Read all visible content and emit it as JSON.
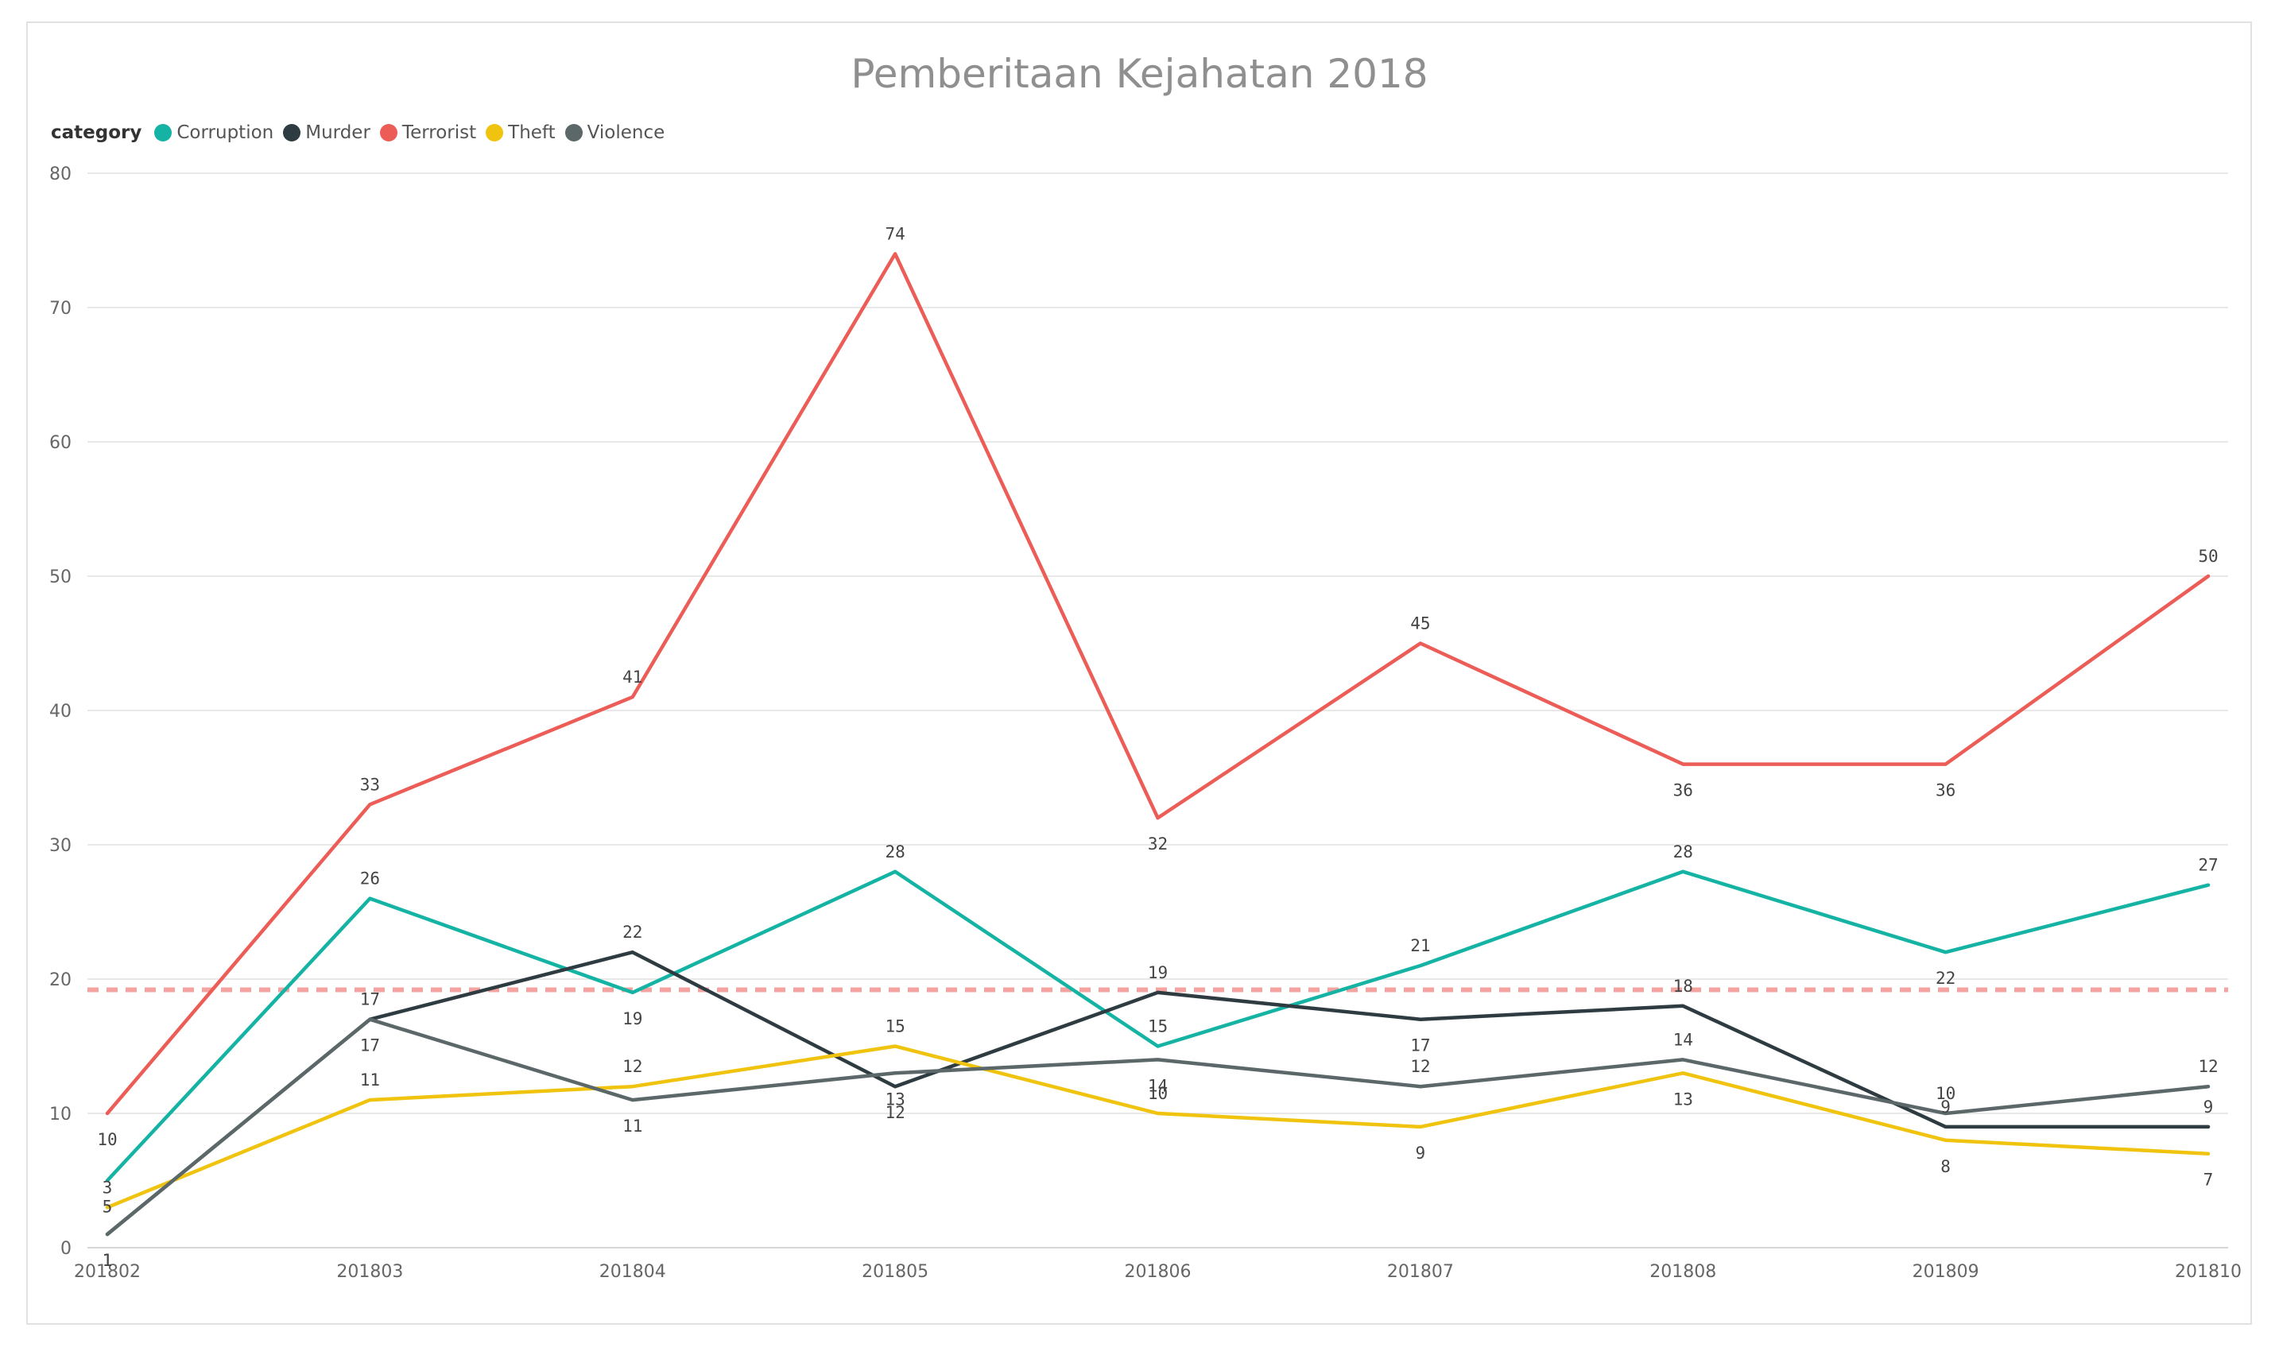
{
  "chart_data": {
    "type": "line",
    "title": "Pemberitaan Kejahatan 2018",
    "legend_title": "category",
    "legend_position": "top-left",
    "x": [
      "201802",
      "201803",
      "201804",
      "201805",
      "201806",
      "201807",
      "201808",
      "201809",
      "201810"
    ],
    "ylim": [
      0,
      80
    ],
    "yticks": [
      0,
      10,
      20,
      30,
      40,
      50,
      60,
      70,
      80
    ],
    "grid": true,
    "reference_line": {
      "value": 19.2,
      "color": "#f4a4a0",
      "style": "dashed"
    },
    "series": [
      {
        "name": "Corruption",
        "color": "#14b3a4",
        "values": [
          5,
          26,
          19,
          28,
          15,
          21,
          28,
          22,
          27
        ],
        "label_pos": [
          "below",
          "above",
          "below",
          "above",
          "above",
          "above",
          "above",
          "below",
          "above"
        ]
      },
      {
        "name": "Murder",
        "color": "#2e3c41",
        "values": [
          1,
          17,
          22,
          12,
          19,
          17,
          18,
          9,
          9
        ],
        "label_pos": [
          "below",
          "below",
          "above",
          "below",
          "above",
          "below",
          "above",
          "above",
          "above"
        ]
      },
      {
        "name": "Terrorist",
        "color": "#ec5d57",
        "values": [
          10,
          33,
          41,
          74,
          32,
          45,
          36,
          36,
          50
        ],
        "label_pos": [
          "below",
          "above",
          "above",
          "above",
          "below",
          "above",
          "below",
          "below",
          "above"
        ]
      },
      {
        "name": "Theft",
        "color": "#f0c30f",
        "values": [
          3,
          11,
          12,
          15,
          10,
          9,
          13,
          8,
          7
        ],
        "label_pos": [
          "above",
          "above",
          "above",
          "above",
          "above",
          "below",
          "below",
          "below",
          "below"
        ]
      },
      {
        "name": "Violence",
        "color": "#5b6769",
        "values": [
          1,
          17,
          11,
          13,
          14,
          12,
          14,
          10,
          12
        ],
        "label_pos": [
          "below",
          "above",
          "below",
          "below",
          "below",
          "above",
          "above",
          "above",
          "above"
        ]
      }
    ]
  }
}
